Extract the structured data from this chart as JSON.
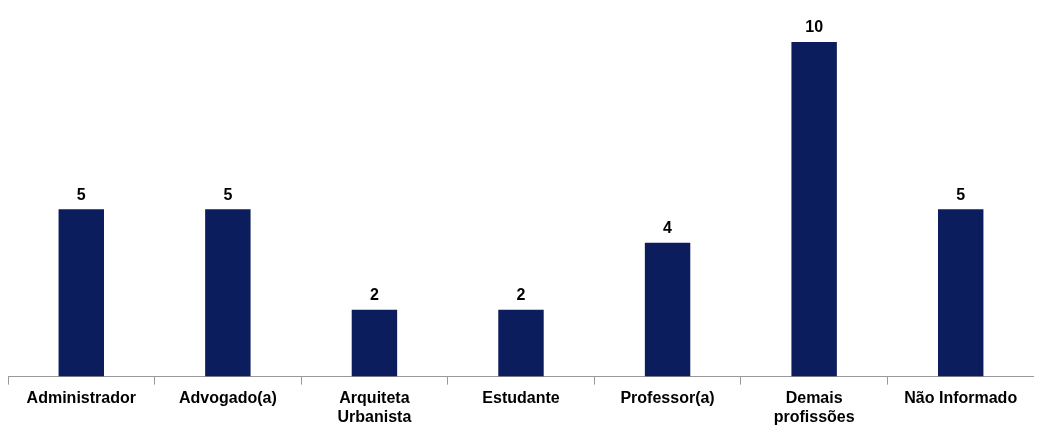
{
  "chart_data": {
    "type": "bar",
    "categories": [
      "Administrador",
      "Advogado(a)",
      "Arquiteta Urbanista",
      "Estudante",
      "Professor(a)",
      "Demais profissões",
      "Não Informado"
    ],
    "values": [
      5,
      5,
      2,
      2,
      4,
      10,
      5
    ],
    "color": "#0c1d5e",
    "data_labels": true,
    "grid": false,
    "legend": false
  }
}
